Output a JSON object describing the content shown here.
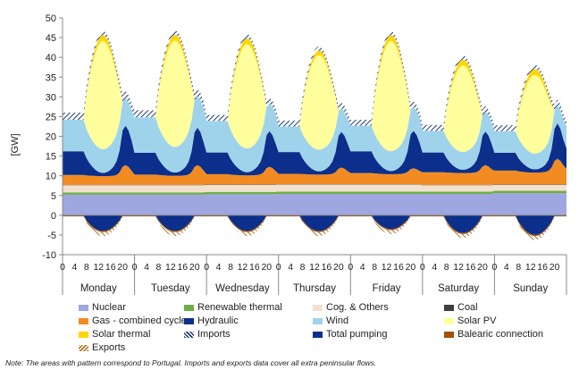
{
  "chart_data": {
    "type": "area",
    "ylabel": "[GW]",
    "ylim": [
      -10,
      50
    ],
    "y_ticks": [
      50,
      45,
      40,
      35,
      30,
      25,
      20,
      15,
      10,
      5,
      0,
      -5,
      -10
    ],
    "hour_ticks": [
      "0",
      "4",
      "8",
      "12",
      "16",
      "20"
    ],
    "days": [
      "Monday",
      "Tuesday",
      "Wednesday",
      "Thursday",
      "Friday",
      "Saturday",
      "Sunday"
    ],
    "hours_per_day": 24,
    "series_hatch_note": "The areas with pattern correspond to Portugal",
    "stacked_series": [
      {
        "name": "Nuclear",
        "color": "#9ea7e0",
        "values": [
          5.2,
          5.2,
          5.3,
          5.4,
          5.4,
          5.4,
          5.6
        ]
      },
      {
        "name": "Renewable thermal",
        "color": "#70ad47",
        "values": [
          0.6,
          0.6,
          0.6,
          0.6,
          0.6,
          0.6,
          0.6
        ]
      },
      {
        "name": "Cog. & Others",
        "color": "#f2e1cf",
        "values": [
          1.8,
          1.8,
          1.8,
          1.8,
          1.8,
          1.6,
          1.5
        ]
      },
      {
        "name": "Coal",
        "color": "#404040",
        "values": [
          0.1,
          0.1,
          0.1,
          0.1,
          0.1,
          0.1,
          0.1
        ]
      },
      {
        "name": "Gas - combined cycle",
        "color": "#f28b22",
        "night": [
          2.5,
          2.6,
          2.6,
          2.6,
          2.8,
          3.2,
          3.5
        ],
        "midday": [
          2.2,
          2.3,
          2.3,
          2.4,
          2.5,
          3.0,
          3.0
        ],
        "evening": [
          5.0,
          5.0,
          4.5,
          4.2,
          4.0,
          5.0,
          6.5
        ]
      },
      {
        "name": "Hydraulic",
        "color": "#0b2f8a",
        "night": [
          6.0,
          5.5,
          5.5,
          5.5,
          5.5,
          5.0,
          4.5
        ],
        "midday": [
          0.8,
          0.8,
          0.8,
          0.8,
          0.8,
          0.8,
          0.8
        ],
        "evening": [
          10.0,
          9.5,
          9.0,
          9.0,
          9.5,
          8.5,
          9.0
        ]
      },
      {
        "name": "Wind",
        "color": "#9fd3eb",
        "night": [
          8.0,
          9.0,
          8.0,
          6.5,
          6.5,
          5.5,
          5.5
        ],
        "midday": [
          6.0,
          6.5,
          6.0,
          5.5,
          5.0,
          4.5,
          4.0
        ],
        "evening": [
          7.0,
          8.0,
          7.0,
          6.0,
          6.0,
          5.0,
          4.5
        ]
      },
      {
        "name": "Solar PV",
        "color": "#ffff9e",
        "peak": [
          27.5,
          27.0,
          26.5,
          24.0,
          28.0,
          22.0,
          20.0
        ]
      },
      {
        "name": "Solar thermal",
        "color": "#ffd700",
        "peak": [
          1.5,
          1.5,
          1.5,
          1.2,
          1.5,
          1.5,
          1.5
        ]
      },
      {
        "name": "Imports",
        "color": "#1f3a7a",
        "night": [
          1.8,
          1.8,
          1.5,
          1.5,
          1.5,
          1.5,
          1.5
        ],
        "midday": [
          1.0,
          1.0,
          1.0,
          1.0,
          1.0,
          1.0,
          1.0
        ]
      }
    ],
    "negative_series": [
      {
        "name": "Total pumping",
        "color": "#0b2f8a",
        "midday_min": [
          -4.0,
          -4.0,
          -4.0,
          -4.0,
          -3.5,
          -4.5,
          -5.0
        ]
      },
      {
        "name": "Balearic connection",
        "color": "#a0520a",
        "values": [
          -0.3,
          -0.3,
          -0.3,
          -0.3,
          -0.3,
          -0.3,
          -0.3
        ]
      },
      {
        "name": "Exports",
        "color": "#b07020",
        "midday_min": [
          -1.0,
          -1.0,
          -1.0,
          -1.0,
          -1.0,
          -1.0,
          -1.0
        ]
      }
    ],
    "legend": [
      {
        "name": "Nuclear",
        "color": "#9ea7e0",
        "hatch": false
      },
      {
        "name": "Renewable thermal",
        "color": "#70ad47",
        "hatch": false
      },
      {
        "name": "Cog. & Others",
        "color": "#f2e1cf",
        "hatch": false
      },
      {
        "name": "Coal",
        "color": "#404040",
        "hatch": false
      },
      {
        "name": "Gas - combined cycle",
        "color": "#f28b22",
        "hatch": false
      },
      {
        "name": "Hydraulic",
        "color": "#0b2f8a",
        "hatch": false
      },
      {
        "name": "Wind",
        "color": "#9fd3eb",
        "hatch": false
      },
      {
        "name": "Solar PV",
        "color": "#ffff9e",
        "hatch": false
      },
      {
        "name": "Solar thermal",
        "color": "#ffd700",
        "hatch": false
      },
      {
        "name": "Imports",
        "color": "#1f3a7a",
        "hatch": true
      },
      {
        "name": "Total pumping",
        "color": "#0b2f8a",
        "hatch": false
      },
      {
        "name": "Balearic connection",
        "color": "#a0520a",
        "hatch": false
      },
      {
        "name": "Exports",
        "color": "#b07020",
        "hatch": true
      }
    ],
    "legend_placement": "bottom",
    "grid": false
  },
  "note": "Note: The areas with pattern correspond to Portugal. Imports and exports data cover all extra peninsular flows."
}
